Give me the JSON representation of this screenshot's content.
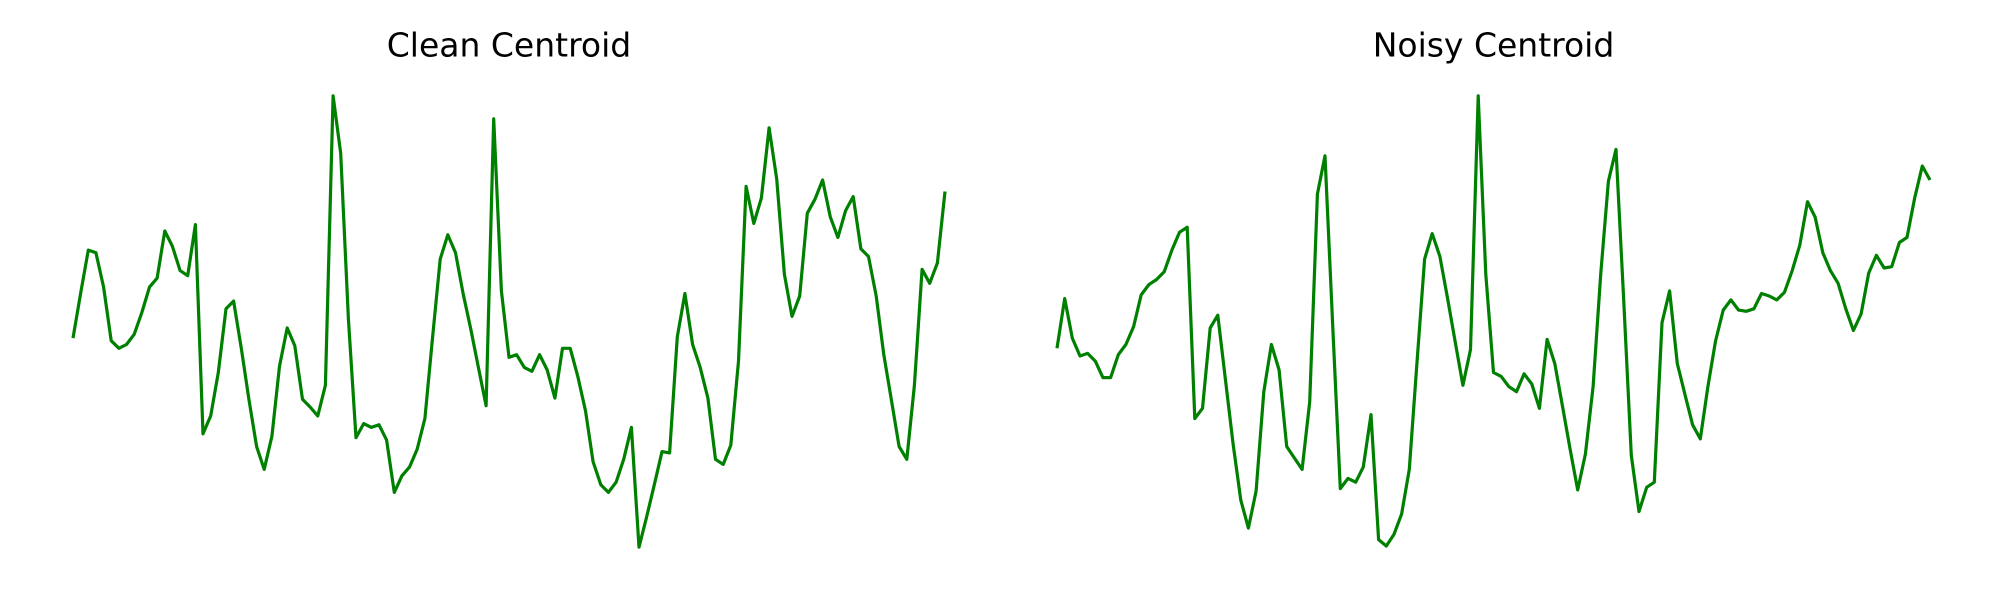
{
  "chart_data": [
    {
      "type": "line",
      "title": "Clean Centroid",
      "color": "#008000",
      "axes": false,
      "ylim": [
        0,
        400
      ],
      "values": [
        185,
        220,
        254,
        252,
        225,
        183,
        177,
        180,
        188,
        205,
        225,
        232,
        269,
        257,
        238,
        234,
        274,
        110,
        124,
        158,
        208,
        214,
        177,
        137,
        100,
        82,
        108,
        163,
        193,
        179,
        137,
        131,
        124,
        148,
        375,
        330,
        200,
        107,
        118,
        115,
        117,
        105,
        64,
        77,
        84,
        98,
        122,
        185,
        247,
        266,
        252,
        220,
        192,
        162,
        132,
        357,
        222,
        170,
        172,
        162,
        159,
        172,
        160,
        138,
        177,
        177,
        155,
        128,
        88,
        70,
        64,
        72,
        90,
        115,
        21,
        45,
        70,
        96,
        95,
        186,
        220,
        180,
        162,
        138,
        90,
        86,
        101,
        167,
        304,
        275,
        295,
        350,
        310,
        235,
        202,
        218,
        283,
        294,
        309,
        280,
        264,
        285,
        296,
        255,
        249,
        218,
        172,
        136,
        100,
        90,
        148,
        239,
        228,
        244,
        300
      ]
    },
    {
      "type": "line",
      "title": "Noisy Centroid",
      "color": "#008000",
      "axes": false,
      "ylim": [
        0,
        400
      ],
      "values": [
        177,
        216,
        185,
        171,
        173,
        167,
        154,
        154,
        172,
        180,
        194,
        219,
        227,
        231,
        237,
        254,
        268,
        272,
        122,
        130,
        193,
        203,
        152,
        102,
        58,
        36,
        65,
        143,
        180,
        160,
        100,
        91,
        82,
        135,
        298,
        328,
        195,
        67,
        75,
        72,
        84,
        125,
        27,
        22,
        31,
        47,
        82,
        165,
        247,
        267,
        249,
        216,
        182,
        148,
        176,
        375,
        235,
        158,
        155,
        147,
        143,
        157,
        149,
        130,
        184,
        165,
        132,
        98,
        66,
        94,
        147,
        235,
        308,
        333,
        215,
        93,
        49,
        68,
        72,
        197,
        222,
        165,
        141,
        117,
        106,
        147,
        183,
        207,
        215,
        207,
        206,
        208,
        220,
        218,
        215,
        221,
        238,
        258,
        292,
        280,
        252,
        238,
        228,
        208,
        191,
        204,
        236,
        250,
        240,
        241,
        260,
        264,
        295,
        320,
        309
      ]
    }
  ]
}
